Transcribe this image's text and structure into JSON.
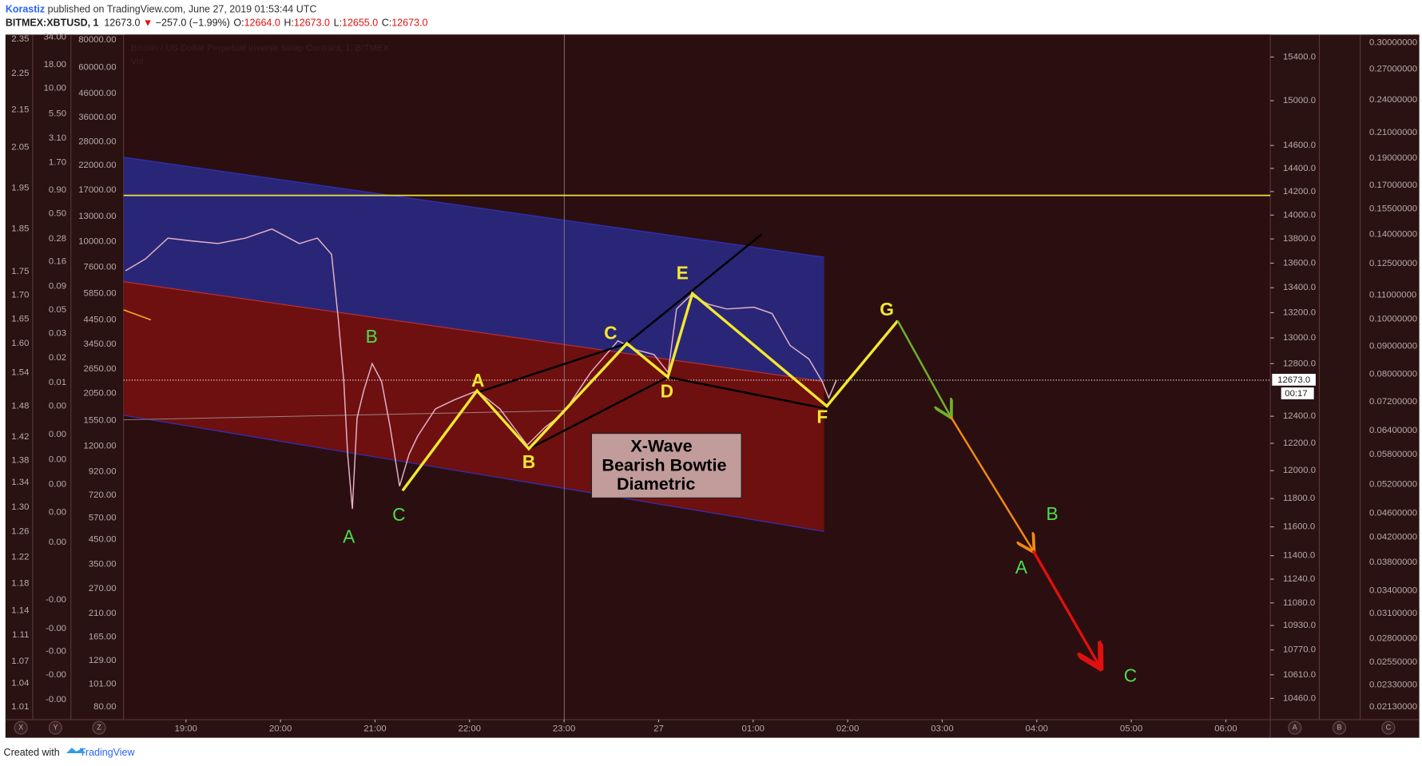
{
  "header": {
    "author": "Korastiz",
    "published": " published on TradingView.com, June 27, 2019 01:53:44 UTC",
    "symbol": "BITMEX:XBTUSD, 1",
    "last": "12673.0",
    "arrow": "▼",
    "change": "−257.0 (−1.99%)",
    "ohlc": [
      {
        "key": "O:",
        "value": "12664.0"
      },
      {
        "key": "H:",
        "value": "12673.0"
      },
      {
        "key": "L:",
        "value": "12655.0"
      },
      {
        "key": "C:",
        "value": "12673.0"
      }
    ]
  },
  "chart_data": {
    "type": "line",
    "title": "Bitcoin / US Dollar Perpetual Inverse Swap Contract, 1, BITMEX",
    "subtitle": "Vol",
    "color": "#e2b2c6",
    "log": true,
    "x": [
      18.36,
      18.57,
      18.81,
      19.05,
      19.34,
      19.63,
      19.91,
      20.2,
      20.39,
      20.54,
      20.61,
      20.67,
      20.71,
      20.76,
      20.81,
      20.88,
      20.97,
      21.07,
      21.16,
      21.26,
      21.36,
      21.45,
      21.64,
      21.84,
      22.08,
      22.32,
      22.61,
      22.8,
      22.99,
      23.28,
      23.57,
      23.76,
      23.95,
      24.1,
      24.19,
      24.34,
      24.53,
      24.72,
      25.01,
      25.2,
      25.39,
      25.59,
      25.73,
      25.8,
      25.88
    ],
    "values": [
      13537,
      13634,
      13807,
      13784,
      13762,
      13807,
      13883,
      13762,
      13807,
      13672,
      13158,
      12662,
      12119,
      11727,
      12388,
      12593,
      12801,
      12662,
      12319,
      11888,
      12119,
      12252,
      12456,
      12524,
      12593,
      12456,
      12186,
      12319,
      12421,
      12732,
      12978,
      12907,
      12871,
      12732,
      13229,
      13339,
      13266,
      13229,
      13243,
      13193,
      12942,
      12836,
      12662,
      12538,
      12673
    ],
    "xlim": [
      18.34,
      30.47
    ],
    "ylim": [
      10327,
      15610
    ],
    "xticks": [
      {
        "value": 19,
        "label": "19:00"
      },
      {
        "value": 20,
        "label": "20:00"
      },
      {
        "value": 21,
        "label": "21:00"
      },
      {
        "value": 22,
        "label": "22:00"
      },
      {
        "value": 23,
        "label": "23:00"
      },
      {
        "value": 24,
        "label": "27"
      },
      {
        "value": 25,
        "label": "01:00"
      },
      {
        "value": 26,
        "label": "02:00"
      },
      {
        "value": 27,
        "label": "03:00"
      },
      {
        "value": 28,
        "label": "04:00"
      },
      {
        "value": 29,
        "label": "05:00"
      },
      {
        "value": 30,
        "label": "06:00"
      }
    ],
    "yticks": [
      {
        "value": 15400,
        "label": "15400.0"
      },
      {
        "value": 15000,
        "label": "15000.0"
      },
      {
        "value": 14600,
        "label": "14600.0"
      },
      {
        "value": 14400,
        "label": "14400.0"
      },
      {
        "value": 14200,
        "label": "14200.0"
      },
      {
        "value": 14000,
        "label": "14000.0"
      },
      {
        "value": 13800,
        "label": "13800.0"
      },
      {
        "value": 13600,
        "label": "13600.0"
      },
      {
        "value": 13400,
        "label": "13400.0"
      },
      {
        "value": 13200,
        "label": "13200.0"
      },
      {
        "value": 13000,
        "label": "13000.0"
      },
      {
        "value": 12800,
        "label": "12800.0"
      },
      {
        "value": 12400,
        "label": "12400.0"
      },
      {
        "value": 12200,
        "label": "12200.0"
      },
      {
        "value": 12000,
        "label": "12000.0"
      },
      {
        "value": 11800,
        "label": "11800.0"
      },
      {
        "value": 11600,
        "label": "11600.0"
      },
      {
        "value": 11400,
        "label": "11400.0"
      },
      {
        "value": 11240,
        "label": "11240.0"
      },
      {
        "value": 11080,
        "label": "11080.0"
      },
      {
        "value": 10930,
        "label": "10930.0"
      },
      {
        "value": 10770,
        "label": "10770.0"
      },
      {
        "value": 10610,
        "label": "10610.0"
      },
      {
        "value": 10460,
        "label": "10460.0"
      }
    ],
    "last_price": {
      "value": 12673,
      "label": "12673.0"
    },
    "countdown": "00:17"
  },
  "left_scales": [
    [
      "2.35",
      "2.25",
      "2.15",
      "2.05",
      "1.95",
      "1.85",
      "1.75",
      "1.70",
      "1.65",
      "1.60",
      "1.54",
      "1.48",
      "1.42",
      "1.38",
      "1.34",
      "1.30",
      "1.26",
      "1.22",
      "1.18",
      "1.14",
      "1.11",
      "1.07",
      "1.04",
      "1.01"
    ],
    [
      "34.00",
      "18.00",
      "10.00",
      "5.50",
      "3.10",
      "1.70",
      "0.90",
      "0.50",
      "0.28",
      "0.16",
      "0.09",
      "0.05",
      "0.03",
      "0.02",
      "0.01",
      "0.00",
      "0.00",
      "0.00",
      "0.00",
      "0.00",
      "0.00",
      "-0.00",
      "-0.00",
      "-0.00",
      "-0.00",
      "-0.00"
    ],
    [
      "80000.00",
      "60000.00",
      "46000.00",
      "36000.00",
      "28000.00",
      "22000.00",
      "17000.00",
      "13000.00",
      "10000.00",
      "7600.00",
      "5850.00",
      "4450.00",
      "3450.00",
      "2650.00",
      "2050.00",
      "1550.00",
      "1200.00",
      "920.00",
      "720.00",
      "570.00",
      "450.00",
      "350.00",
      "270.00",
      "210.00",
      "165.00",
      "129.00",
      "101.00",
      "80.00"
    ]
  ],
  "right_scale": [
    "0.30000000",
    "0.27000000",
    "0.24000000",
    "0.21000000",
    "0.19000000",
    "0.17000000",
    "0.15500000",
    "0.14000000",
    "0.12500000",
    "0.11000000",
    "0.10000000",
    "0.09000000",
    "0.08000000",
    "0.07200000",
    "0.06400000",
    "0.05800000",
    "0.05200000",
    "0.04600000",
    "0.04200000",
    "0.03800000",
    "0.03400000",
    "0.03100000",
    "0.02800000",
    "0.02550000",
    "0.02330000",
    "0.02130000"
  ],
  "toolbar": {
    "left": [
      "X",
      "Y",
      "Z"
    ],
    "right": [
      "A",
      "B",
      "C"
    ]
  },
  "annotations": {
    "yellow": [
      "A",
      "B",
      "C",
      "D",
      "E",
      "F",
      "G"
    ],
    "green": [
      "B",
      "A",
      "C",
      "B",
      "A",
      "C"
    ],
    "box": [
      "X-Wave",
      "Bearish Bowtie",
      "Diametric"
    ]
  },
  "footer": {
    "created": "Created with",
    "brand": "TradingView"
  }
}
